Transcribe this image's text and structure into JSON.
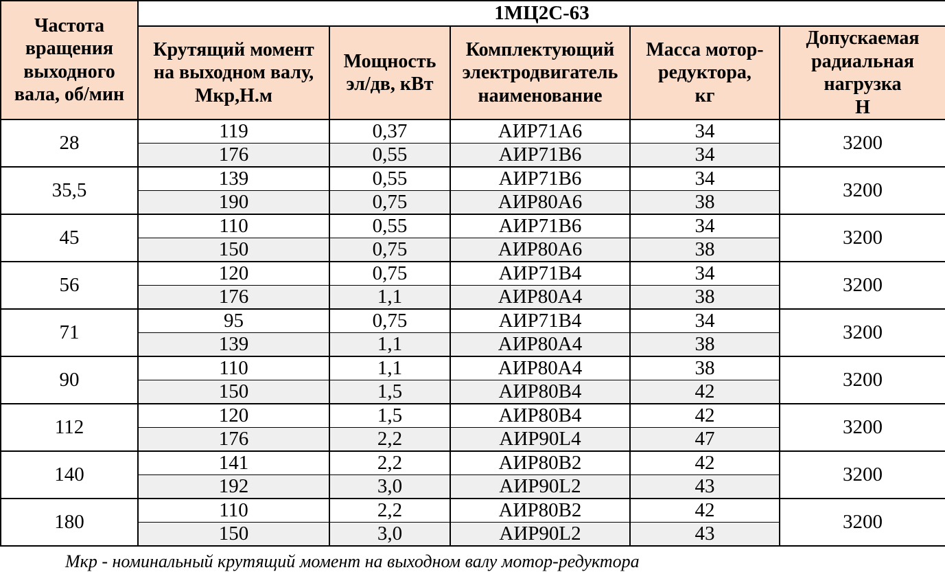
{
  "table": {
    "title": "1МЦ2С-63",
    "corner_header": "Частота\nвращения\nвыходного\nвала, об/мин",
    "columns": [
      "Крутящий момент\nна выходном валу,\nМкр,Н.м",
      "Мощность\nэл/дв, кВт",
      "Комплектующий\nэлектродвигатель\nнаименование",
      "Масса мотор-\nредуктора,\nкг",
      "Допускаемая\nрадиальная\nнагрузка\nН"
    ],
    "colors": {
      "header_bg": "#fbdcc9",
      "alt_row_bg": "#efefef",
      "border": "#000000"
    }
  },
  "groups": [
    {
      "speed": "28",
      "load": "3200",
      "rows": [
        [
          "119",
          "0,37",
          "АИР71А6",
          "34"
        ],
        [
          "176",
          "0,55",
          "АИР71В6",
          "34"
        ]
      ]
    },
    {
      "speed": "35,5",
      "load": "3200",
      "rows": [
        [
          "139",
          "0,55",
          "АИР71В6",
          "34"
        ],
        [
          "190",
          "0,75",
          "АИР80А6",
          "38"
        ]
      ]
    },
    {
      "speed": "45",
      "load": "3200",
      "rows": [
        [
          "110",
          "0,55",
          "АИР71В6",
          "34"
        ],
        [
          "150",
          "0,75",
          "АИР80А6",
          "38"
        ]
      ]
    },
    {
      "speed": "56",
      "load": "3200",
      "rows": [
        [
          "120",
          "0,75",
          "АИР71В4",
          "34"
        ],
        [
          "176",
          "1,1",
          "АИР80А4",
          "38"
        ]
      ]
    },
    {
      "speed": "71",
      "load": "3200",
      "rows": [
        [
          "95",
          "0,75",
          "АИР71В4",
          "34"
        ],
        [
          "139",
          "1,1",
          "АИР80А4",
          "38"
        ]
      ]
    },
    {
      "speed": "90",
      "load": "3200",
      "rows": [
        [
          "110",
          "1,1",
          "АИР80А4",
          "38"
        ],
        [
          "150",
          "1,5",
          "АИР80В4",
          "42"
        ]
      ]
    },
    {
      "speed": "112",
      "load": "3200",
      "rows": [
        [
          "120",
          "1,5",
          "АИР80В4",
          "42"
        ],
        [
          "176",
          "2,2",
          "АИР90L4",
          "47"
        ]
      ]
    },
    {
      "speed": "140",
      "load": "3200",
      "rows": [
        [
          "141",
          "2,2",
          "АИР80В2",
          "42"
        ],
        [
          "192",
          "3,0",
          "АИР90L2",
          "43"
        ]
      ]
    },
    {
      "speed": "180",
      "load": "3200",
      "rows": [
        [
          "110",
          "2,2",
          "АИР80В2",
          "42"
        ],
        [
          "150",
          "3,0",
          "АИР90L2",
          "43"
        ]
      ]
    }
  ],
  "footnote": "Мкр - номинальный крутящий момент на выходном валу мотор-редуктора"
}
